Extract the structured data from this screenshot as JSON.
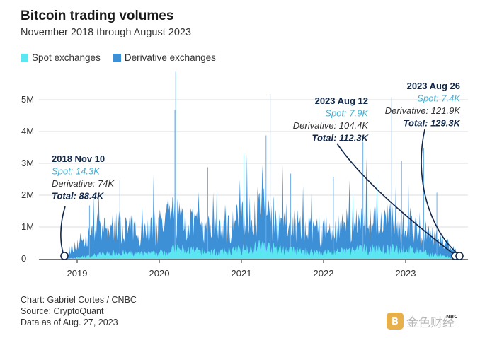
{
  "chart_data": {
    "type": "area",
    "title": "Bitcoin trading volumes",
    "subtitle": "November 2018 through August 2023",
    "xlabel": "",
    "ylabel": "",
    "x_start": 2018.86,
    "x_end": 2023.65,
    "xticks": [
      {
        "value": 2019,
        "label": "2019"
      },
      {
        "value": 2020,
        "label": "2020"
      },
      {
        "value": 2021,
        "label": "2021"
      },
      {
        "value": 2022,
        "label": "2022"
      },
      {
        "value": 2023,
        "label": "2023"
      }
    ],
    "ylim": [
      0,
      5500000
    ],
    "yticks": [
      {
        "value": 0,
        "label": "0"
      },
      {
        "value": 1000000,
        "label": "1M"
      },
      {
        "value": 2000000,
        "label": "2M"
      },
      {
        "value": 3000000,
        "label": "3M"
      },
      {
        "value": 4000000,
        "label": "4M"
      },
      {
        "value": 5000000,
        "label": "5M"
      }
    ],
    "series": [
      {
        "name": "Spot exchanges",
        "color": "#5ce6f2",
        "x": [
          2018.86,
          2019.0,
          2019.25,
          2019.5,
          2019.75,
          2020.0,
          2020.2,
          2020.5,
          2020.75,
          2021.0,
          2021.25,
          2021.5,
          2021.75,
          2022.0,
          2022.25,
          2022.5,
          2022.75,
          2023.0,
          2023.25,
          2023.5,
          2023.65
        ],
        "values": [
          14300,
          60000,
          150000,
          220000,
          170000,
          200000,
          350000,
          250000,
          230000,
          330000,
          420000,
          300000,
          250000,
          230000,
          260000,
          330000,
          310000,
          330000,
          200000,
          90000,
          7400
        ]
      },
      {
        "name": "Derivative exchanges",
        "color": "#3d8fd6",
        "x": [
          2018.86,
          2019.0,
          2019.25,
          2019.5,
          2019.75,
          2020.0,
          2020.2,
          2020.5,
          2020.75,
          2021.0,
          2021.25,
          2021.5,
          2021.75,
          2022.0,
          2022.25,
          2022.5,
          2022.75,
          2023.0,
          2023.25,
          2023.5,
          2023.65
        ],
        "values": [
          74000,
          450000,
          650000,
          750000,
          650000,
          780000,
          1100000,
          700000,
          680000,
          950000,
          1150000,
          850000,
          720000,
          600000,
          700000,
          900000,
          850000,
          750000,
          600000,
          350000,
          121900
        ]
      }
    ],
    "spikes": [
      {
        "x": 2020.2,
        "value": 5900000
      },
      {
        "x": 2020.19,
        "value": 4700000
      },
      {
        "x": 2021.35,
        "value": 5200000
      },
      {
        "x": 2021.3,
        "value": 3900000
      },
      {
        "x": 2021.03,
        "value": 3300000
      },
      {
        "x": 2022.83,
        "value": 5100000
      },
      {
        "x": 2022.48,
        "value": 3700000
      },
      {
        "x": 2023.22,
        "value": 3500000
      },
      {
        "x": 2019.52,
        "value": 2500000
      },
      {
        "x": 2020.59,
        "value": 2900000
      },
      {
        "x": 2021.6,
        "value": 2700000
      },
      {
        "x": 2022.95,
        "value": 3100000
      },
      {
        "x": 2023.38,
        "value": 2100000
      },
      {
        "x": 2019.15,
        "value": 1700000
      },
      {
        "x": 2022.12,
        "value": 2600000
      }
    ],
    "annotations": [
      {
        "id": "a2018",
        "x": 2018.86,
        "date": "2018 Nov 10",
        "spot": "Spot: 14.3K",
        "derivative": "Derivative: 74K",
        "total": "Total: 88.4K"
      },
      {
        "id": "a2023aug12",
        "x": 2023.62,
        "date": "2023 Aug 12",
        "spot": "Spot: 7.9K",
        "derivative": "Derivative: 104.4K",
        "total": "Total: 112.3K"
      },
      {
        "id": "a2023aug26",
        "x": 2023.66,
        "date": "2023 Aug 26",
        "spot": "Spot: 7.4K",
        "derivative": "Derivative: 121.9K",
        "total": "Total: 129.3K"
      }
    ]
  },
  "footer": {
    "credit": "Chart: Gabriel Cortes / CNBC",
    "source": "Source: CryptoQuant",
    "asof": "Data as of Aug. 27, 2023"
  },
  "logo": {
    "text": "金色财经",
    "mark": "NBC"
  },
  "colors": {
    "spot": "#5ce6f2",
    "derivative": "#3d8fd6",
    "annotation": "#12284a",
    "spot_text": "#3fb1d6"
  }
}
